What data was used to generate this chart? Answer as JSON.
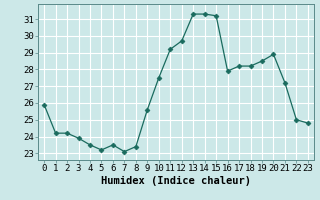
{
  "x": [
    0,
    1,
    2,
    3,
    4,
    5,
    6,
    7,
    8,
    9,
    10,
    11,
    12,
    13,
    14,
    15,
    16,
    17,
    18,
    19,
    20,
    21,
    22,
    23
  ],
  "y": [
    25.9,
    24.2,
    24.2,
    23.9,
    23.5,
    23.2,
    23.5,
    23.1,
    23.4,
    25.6,
    27.5,
    29.2,
    29.7,
    31.3,
    31.3,
    31.2,
    27.9,
    28.2,
    28.2,
    28.5,
    28.9,
    27.2,
    25.0,
    24.8
  ],
  "line_color": "#1a6b5e",
  "marker": "D",
  "marker_size": 2.5,
  "bg_color": "#cce8e8",
  "grid_color": "#ffffff",
  "xlabel": "Humidex (Indice chaleur)",
  "ylabel_ticks": [
    23,
    24,
    25,
    26,
    27,
    28,
    29,
    30,
    31
  ],
  "ylim": [
    22.6,
    31.9
  ],
  "xlim": [
    -0.5,
    23.5
  ],
  "xticks": [
    0,
    1,
    2,
    3,
    4,
    5,
    6,
    7,
    8,
    9,
    10,
    11,
    12,
    13,
    14,
    15,
    16,
    17,
    18,
    19,
    20,
    21,
    22,
    23
  ],
  "tick_fontsize": 6.5,
  "xlabel_fontsize": 7.5
}
